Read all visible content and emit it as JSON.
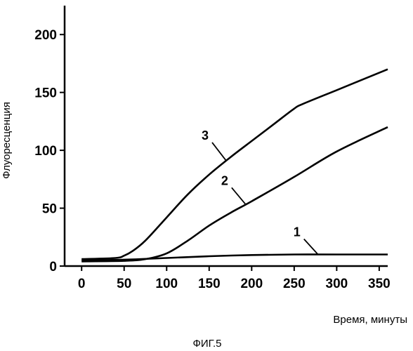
{
  "chart_data": {
    "type": "line",
    "title": "",
    "xlabel": "Время, минуты",
    "ylabel": "Флуоресценция",
    "xlim": [
      -20,
      360
    ],
    "ylim": [
      0,
      225
    ],
    "x_ticks": [
      "0",
      "50",
      "100",
      "150",
      "200",
      "250",
      "300",
      "350"
    ],
    "x_tick_values": [
      0,
      50,
      100,
      150,
      200,
      250,
      300,
      350
    ],
    "y_ticks": [
      "0",
      "50",
      "100",
      "150",
      "200"
    ],
    "y_tick_values": [
      0,
      50,
      100,
      150,
      200
    ],
    "grid": false,
    "legend": "none",
    "series": [
      {
        "label": "1",
        "x": [
          0,
          50,
          100,
          150,
          200,
          250,
          300,
          360
        ],
        "y": [
          5,
          5.5,
          7,
          8.5,
          9.5,
          10,
          10,
          10
        ]
      },
      {
        "label": "2",
        "x": [
          0,
          50,
          75,
          100,
          125,
          150,
          175,
          200,
          250,
          300,
          360
        ],
        "y": [
          4,
          4.5,
          6,
          11,
          22,
          35,
          46,
          56,
          77,
          99,
          120
        ]
      },
      {
        "label": "3",
        "x": [
          0,
          40,
          50,
          60,
          75,
          100,
          125,
          150,
          175,
          200,
          225,
          250,
          260,
          300,
          360
        ],
        "y": [
          6,
          7,
          9,
          13,
          22,
          42,
          62,
          79,
          94,
          108,
          122,
          136,
          140,
          152,
          170
        ]
      }
    ],
    "annotations": [
      {
        "text": "1",
        "series": "1",
        "at_x": 278
      },
      {
        "text": "2",
        "series": "2",
        "at_x": 193
      },
      {
        "text": "3",
        "series": "3",
        "at_x": 170
      }
    ]
  },
  "caption": "ФИГ.5"
}
